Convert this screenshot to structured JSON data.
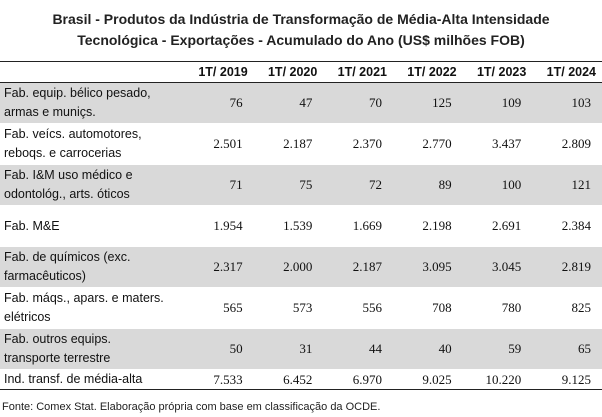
{
  "title_line1": "Brasil - Produtos da Indústria de Transformação de Média-Alta Intensidade",
  "title_line2": "Tecnológica - Exportações - Acumulado do Ano (US$ milhões FOB)",
  "columns": [
    "1T/ 2019",
    "1T/ 2020",
    "1T/ 2021",
    "1T/ 2022",
    "1T/ 2023",
    "1T/ 2024"
  ],
  "rows": [
    {
      "label1": "Fab. equip. bélico pesado,",
      "label2": "armas e muniçs.",
      "values": [
        "76",
        "47",
        "70",
        "125",
        "109",
        "103"
      ]
    },
    {
      "label1": "Fab. veícs. automotores,",
      "label2": "reboqs. e carrocerias",
      "values": [
        "2.501",
        "2.187",
        "2.370",
        "2.770",
        "3.437",
        "2.809"
      ]
    },
    {
      "label1": "Fab. I&M uso médico e",
      "label2": "odontológ., arts. óticos",
      "values": [
        "71",
        "75",
        "72",
        "89",
        "100",
        "121"
      ]
    },
    {
      "label1": "Fab. M&E",
      "label2": "",
      "values": [
        "1.954",
        "1.539",
        "1.669",
        "2.198",
        "2.691",
        "2.384"
      ]
    },
    {
      "label1": "Fab. de químicos (exc.",
      "label2": "farmacêuticos)",
      "values": [
        "2.317",
        "2.000",
        "2.187",
        "3.095",
        "3.045",
        "2.819"
      ]
    },
    {
      "label1": "Fab. máqs., apars. e maters.",
      "label2": "elétricos",
      "values": [
        "565",
        "573",
        "556",
        "708",
        "780",
        "825"
      ]
    },
    {
      "label1": "Fab. outros equips.",
      "label2": "transporte terrestre",
      "values": [
        "50",
        "31",
        "44",
        "40",
        "59",
        "65"
      ]
    }
  ],
  "total": {
    "label": "Ind. transf. de média-alta",
    "values": [
      "7.533",
      "6.452",
      "6.970",
      "9.025",
      "10.220",
      "9.125"
    ]
  },
  "source": "Fonte: Comex Stat. Elaboração própria com base em classificação da OCDE.",
  "colors": {
    "shade": "#d9d9d9",
    "rule": "#222222"
  }
}
